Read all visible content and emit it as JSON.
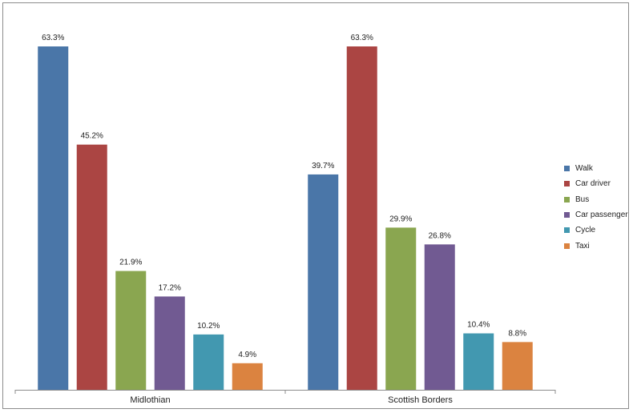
{
  "chart_data": {
    "type": "bar",
    "categories": [
      "Midlothian",
      "Scottish Borders"
    ],
    "series": [
      {
        "name": "Walk",
        "color": "#4a76a8",
        "values": [
          63.3,
          39.7
        ],
        "labels": [
          "63.3%",
          "39.7%"
        ]
      },
      {
        "name": "Car driver",
        "color": "#ab4543",
        "values": [
          45.2,
          63.3
        ],
        "labels": [
          "45.2%",
          "63.3%"
        ]
      },
      {
        "name": "Bus",
        "color": "#8aa650",
        "values": [
          21.9,
          29.9
        ],
        "labels": [
          "21.9%",
          "29.9%"
        ]
      },
      {
        "name": "Car passenger",
        "color": "#715a92",
        "values": [
          17.2,
          26.8
        ],
        "labels": [
          "17.2%",
          "26.8%"
        ]
      },
      {
        "name": "Cycle",
        "color": "#4298b0",
        "values": [
          10.2,
          10.4
        ],
        "labels": [
          "10.2%",
          "10.4%"
        ]
      },
      {
        "name": "Taxi",
        "color": "#db8340",
        "values": [
          4.9,
          8.8
        ],
        "labels": [
          "4.9%",
          "8.8%"
        ]
      }
    ],
    "ylim": [
      0,
      63.3
    ],
    "legend_position": "right",
    "grid": false
  }
}
